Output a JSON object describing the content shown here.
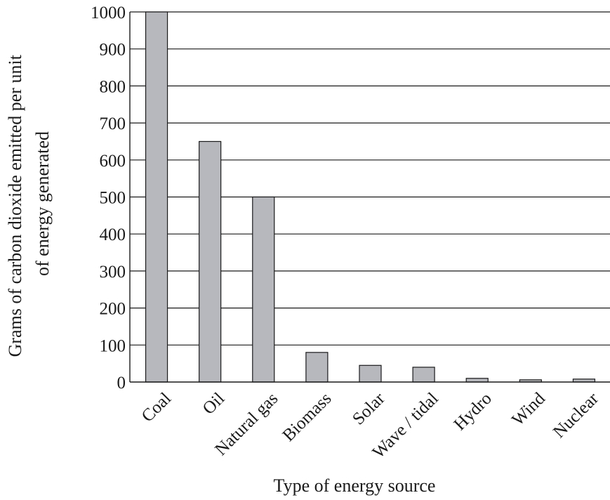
{
  "chart_data": {
    "type": "bar",
    "categories": [
      "Coal",
      "Oil",
      "Natural gas",
      "Biomass",
      "Solar",
      "Wave / tidal",
      "Hydro",
      "Wind",
      "Nuclear"
    ],
    "values": [
      1000,
      650,
      500,
      80,
      45,
      40,
      10,
      6,
      8
    ],
    "xlabel": "Type of energy source",
    "ylabel_lines": [
      "Grams of carbon dioxide emitted per unit",
      "of energy generated"
    ],
    "ylim": [
      0,
      1000
    ],
    "yticks": [
      0,
      100,
      200,
      300,
      400,
      500,
      600,
      700,
      800,
      900,
      1000
    ],
    "grid": true,
    "bar_color": "#b7b8bd"
  }
}
